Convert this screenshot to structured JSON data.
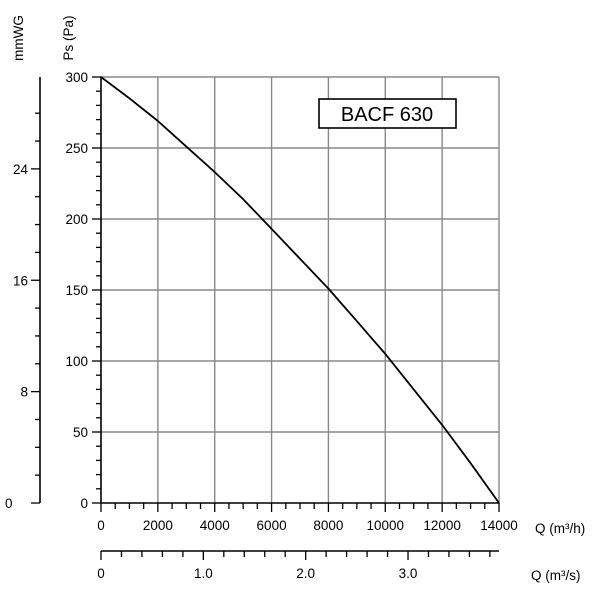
{
  "chart_data": {
    "type": "line",
    "model_label": "BACF 630",
    "ylabel": "Ps (Pa)",
    "ylabel_secondary": "mmWG",
    "xlabel": "Q (m³/h)",
    "xlabel_secondary": "Q (m³/s)",
    "xlim": [
      0,
      14000
    ],
    "ylim": [
      0,
      300
    ],
    "x_ticks": [
      "0",
      "2000",
      "4000",
      "6000",
      "8000",
      "10000",
      "12000",
      "14000"
    ],
    "x_tick_values": [
      0,
      2000,
      4000,
      6000,
      8000,
      10000,
      12000,
      14000
    ],
    "y_ticks": [
      "0",
      "50",
      "100",
      "150",
      "200",
      "250",
      "300"
    ],
    "y_tick_values": [
      0,
      50,
      100,
      150,
      200,
      250,
      300
    ],
    "secondary_y_ticks": [
      "0",
      "8",
      "16",
      "24"
    ],
    "secondary_y_tick_values": [
      0,
      8,
      16,
      24
    ],
    "secondary_y_range_mmwg": [
      0,
      30.6
    ],
    "secondary_x_ticks": [
      "0",
      "1.0",
      "2.0",
      "3.0"
    ],
    "secondary_x_tick_values": [
      0,
      1.0,
      2.0,
      3.0
    ],
    "secondary_x_range_m3s": [
      0,
      3.889
    ],
    "grid": true,
    "series": [
      {
        "x": [
          0,
          1000,
          2000,
          3000,
          4000,
          5000,
          6000,
          7000,
          8000,
          9000,
          10000,
          11000,
          12000,
          13000,
          14000
        ],
        "y": [
          300,
          285,
          269,
          251,
          233,
          214,
          193,
          172,
          151,
          128,
          105,
          80,
          55,
          28,
          0
        ]
      }
    ]
  }
}
